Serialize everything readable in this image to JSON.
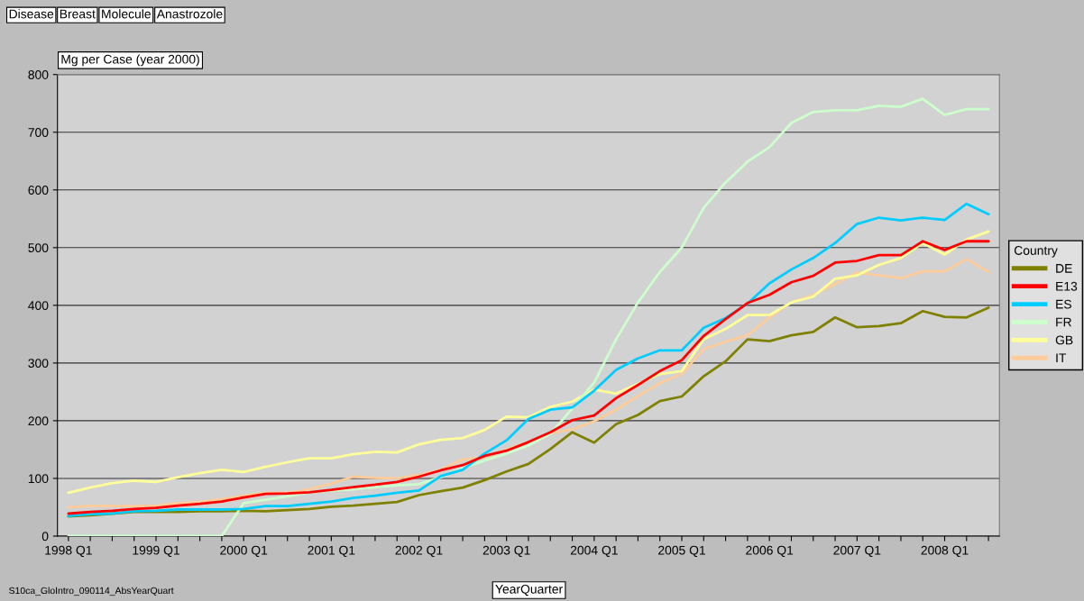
{
  "chart_data": {
    "type": "line",
    "annotations": [
      "Disease",
      "Breast",
      "Molecule",
      "Anastrozole",
      "S10ca_GloIntro_090114_AbsYearQuart"
    ],
    "ylabel": "Mg per Case (year 2000)",
    "xlabel": "YearQuarter",
    "legend_title": "Country",
    "categories": [
      "1998 Q1",
      null,
      null,
      null,
      "1999 Q1",
      null,
      null,
      null,
      "2000 Q1",
      null,
      null,
      null,
      "2001 Q1",
      null,
      null,
      null,
      "2002 Q1",
      null,
      null,
      null,
      "2003 Q1",
      null,
      null,
      null,
      "2004 Q1",
      null,
      null,
      null,
      "2005 Q1",
      null,
      null,
      null,
      "2006 Q1",
      null,
      null,
      null,
      "2007 Q1",
      null,
      null,
      null,
      "2008 Q1",
      null,
      null
    ],
    "series": [
      {
        "name": "DE",
        "color": "#808000",
        "values": [
          34,
          36,
          39,
          42,
          42,
          42,
          43,
          43,
          44,
          43,
          45,
          47,
          51,
          53,
          56,
          59,
          71,
          78,
          84,
          97,
          112,
          125,
          151,
          180,
          162,
          194,
          210,
          234,
          242,
          277,
          303,
          341,
          338,
          348,
          354,
          379,
          362,
          364,
          369,
          390,
          380,
          379,
          396
        ]
      },
      {
        "name": "E13",
        "color": "#ff0000",
        "values": [
          39,
          42,
          44,
          47,
          49,
          53,
          56,
          60,
          67,
          73,
          74,
          76,
          80,
          85,
          89,
          94,
          103,
          114,
          123,
          139,
          148,
          163,
          180,
          201,
          209,
          239,
          262,
          286,
          305,
          347,
          376,
          404,
          418,
          440,
          451,
          474,
          477,
          487,
          487,
          511,
          496,
          511,
          511
        ]
      },
      {
        "name": "ES",
        "color": "#00ccff",
        "values": [
          35,
          38,
          39,
          43,
          44,
          46,
          46,
          46,
          47,
          52,
          52,
          56,
          60,
          66,
          70,
          75,
          79,
          104,
          115,
          143,
          166,
          203,
          219,
          223,
          252,
          288,
          308,
          322,
          322,
          361,
          378,
          403,
          438,
          462,
          482,
          508,
          541,
          552,
          547,
          552,
          548,
          576,
          558
        ]
      },
      {
        "name": "FR",
        "color": "#ccffcc",
        "values": [
          0,
          0,
          0,
          0,
          0,
          0,
          0,
          0,
          57,
          63,
          69,
          76,
          79,
          81,
          85,
          88,
          90,
          102,
          118,
          131,
          143,
          157,
          177,
          221,
          266,
          341,
          405,
          458,
          500,
          569,
          613,
          649,
          674,
          716,
          735,
          738,
          738,
          746,
          744,
          758,
          730,
          740,
          740
        ]
      },
      {
        "name": "GB",
        "color": "#ffff99",
        "values": [
          75,
          84,
          92,
          96,
          94,
          102,
          109,
          115,
          111,
          120,
          128,
          135,
          135,
          142,
          146,
          145,
          159,
          167,
          170,
          184,
          207,
          206,
          224,
          233,
          254,
          247,
          264,
          281,
          286,
          341,
          359,
          383,
          383,
          405,
          415,
          446,
          452,
          470,
          482,
          508,
          488,
          514,
          528
        ]
      },
      {
        "name": "IT",
        "color": "#ffcc99",
        "values": [
          50,
          52,
          52,
          52,
          53,
          57,
          59,
          64,
          70,
          75,
          75,
          81,
          91,
          103,
          101,
          100,
          106,
          115,
          133,
          136,
          150,
          163,
          178,
          185,
          199,
          219,
          243,
          265,
          281,
          324,
          337,
          348,
          379,
          405,
          418,
          437,
          457,
          452,
          447,
          459,
          459,
          480,
          458
        ]
      }
    ],
    "ylim": [
      0,
      800
    ],
    "yticks": [
      0,
      100,
      200,
      300,
      400,
      500,
      600,
      700,
      800
    ],
    "grid": "y",
    "legend": "right",
    "marker": "none",
    "line_style": "solid"
  }
}
